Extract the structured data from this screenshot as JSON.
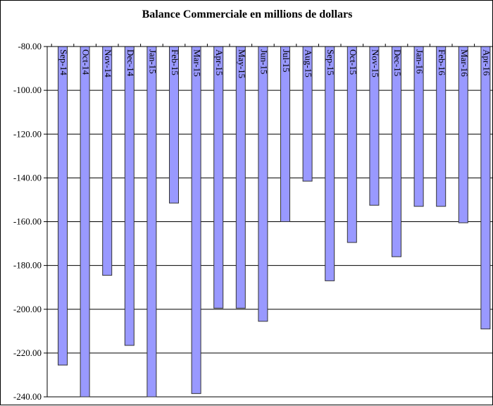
{
  "chart_data": {
    "type": "bar",
    "title": "Balance Commerciale  en millions de dollars",
    "xlabel": "",
    "ylabel": "",
    "categories": [
      "Sep-14",
      "Oct-14",
      "Nov-14",
      "Dec-14",
      "Jan-15",
      "Feb-15",
      "Mar-15",
      "Apr-15",
      "May-15",
      "Jun-15",
      "Jul-15",
      "Aug-15",
      "Sep-15",
      "Oct-15",
      "Nov-15",
      "Dec-15",
      "Jan-16",
      "Feb-16",
      "Mar-16",
      "Apr-16"
    ],
    "values": [
      -225.5,
      -240,
      -184.5,
      -216.5,
      -240,
      -151.5,
      -238.5,
      -199.5,
      -199.5,
      -205.5,
      -160,
      -141.5,
      -187,
      -169.5,
      -152.5,
      -176,
      -153,
      -153,
      -160.5,
      -209
    ],
    "ylim": [
      -240,
      -80
    ],
    "yticks": [
      "-80.00",
      "-100.00",
      "-120.00",
      "-140.00",
      "-160.00",
      "-180.00",
      "-200.00",
      "-220.00",
      "-240.00"
    ],
    "grid": true,
    "legend": "none",
    "bar_color": "#9999ff",
    "bar_edge_color": "#333333"
  }
}
